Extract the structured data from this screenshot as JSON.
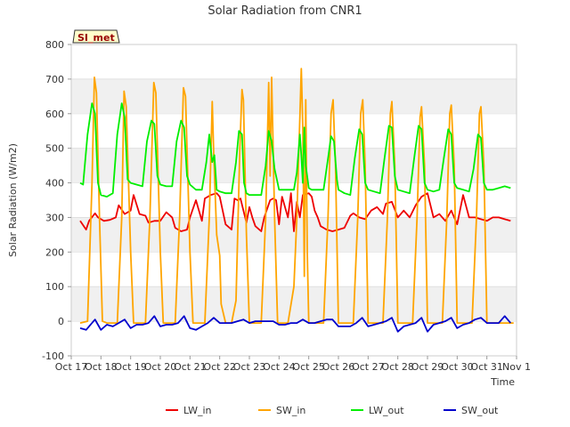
{
  "chart_data": {
    "type": "line",
    "title": "Solar Radiation from CNR1",
    "xlabel": "Time",
    "ylabel": "Solar Radiation (W/m2)",
    "site_label": "SI_met",
    "xlim": [
      0,
      15
    ],
    "ylim": [
      -100,
      800
    ],
    "y_ticks": [
      -100,
      0,
      100,
      200,
      300,
      400,
      500,
      600,
      700,
      800
    ],
    "x_ticks": [
      {
        "pos": 0,
        "label": "Oct 17"
      },
      {
        "pos": 1,
        "label": "Oct 18"
      },
      {
        "pos": 2,
        "label": "Oct 19"
      },
      {
        "pos": 3,
        "label": "Oct 20"
      },
      {
        "pos": 4,
        "label": "Oct 21"
      },
      {
        "pos": 5,
        "label": "Oct 22"
      },
      {
        "pos": 6,
        "label": "Oct 23"
      },
      {
        "pos": 7,
        "label": "Oct 24"
      },
      {
        "pos": 8,
        "label": "Oct 25"
      },
      {
        "pos": 9,
        "label": "Oct 26"
      },
      {
        "pos": 10,
        "label": "Oct 27"
      },
      {
        "pos": 11,
        "label": "Oct 28"
      },
      {
        "pos": 12,
        "label": "Oct 29"
      },
      {
        "pos": 13,
        "label": "Oct 30"
      },
      {
        "pos": 14,
        "label": "Oct 31"
      },
      {
        "pos": 15,
        "label": "Nov 1"
      }
    ],
    "grid": "horizontal bands",
    "legend_position": "bottom",
    "series": [
      {
        "name": "LW_in",
        "color": "#ee0000",
        "x": [
          0.3,
          0.5,
          0.6,
          0.8,
          0.9,
          1.1,
          1.3,
          1.5,
          1.6,
          1.8,
          2.0,
          2.1,
          2.3,
          2.5,
          2.6,
          2.8,
          3.0,
          3.2,
          3.4,
          3.5,
          3.7,
          3.9,
          4.0,
          4.2,
          4.4,
          4.5,
          4.7,
          4.9,
          5.0,
          5.2,
          5.4,
          5.5,
          5.6,
          5.7,
          5.9,
          6.0,
          6.1,
          6.2,
          6.4,
          6.5,
          6.7,
          6.8,
          6.9,
          7.0,
          7.1,
          7.3,
          7.4,
          7.5,
          7.6,
          7.7,
          7.8,
          8.0,
          8.1,
          8.2,
          8.3,
          8.4,
          8.6,
          8.8,
          9.0,
          9.2,
          9.4,
          9.5,
          9.7,
          9.9,
          10.1,
          10.3,
          10.5,
          10.6,
          10.8,
          11.0,
          11.2,
          11.4,
          11.6,
          11.8,
          12.0,
          12.2,
          12.4,
          12.6,
          12.8,
          13.0,
          13.2,
          13.4,
          13.6,
          13.8,
          14.0,
          14.2,
          14.4,
          14.6,
          14.8
        ],
        "y": [
          290,
          265,
          290,
          312,
          300,
          290,
          293,
          300,
          335,
          310,
          320,
          365,
          310,
          305,
          285,
          290,
          290,
          315,
          300,
          270,
          260,
          265,
          300,
          350,
          290,
          355,
          365,
          370,
          360,
          280,
          265,
          355,
          350,
          355,
          285,
          330,
          300,
          275,
          260,
          300,
          350,
          355,
          350,
          280,
          360,
          300,
          370,
          260,
          345,
          300,
          365,
          370,
          360,
          320,
          300,
          275,
          265,
          260,
          265,
          270,
          305,
          312,
          300,
          295,
          320,
          330,
          310,
          340,
          345,
          300,
          320,
          300,
          335,
          360,
          370,
          300,
          310,
          290,
          320,
          280,
          365,
          300,
          300,
          295,
          290,
          300,
          300,
          295,
          290
        ]
      },
      {
        "name": "SW_in",
        "color": "#ffa500",
        "x": [
          0.3,
          0.55,
          0.7,
          0.78,
          0.85,
          0.95,
          1.05,
          1.2,
          1.4,
          1.55,
          1.7,
          1.78,
          1.85,
          2.0,
          2.1,
          2.3,
          2.5,
          2.65,
          2.78,
          2.85,
          3.0,
          3.1,
          3.3,
          3.5,
          3.65,
          3.78,
          3.85,
          4.0,
          4.1,
          4.3,
          4.5,
          4.65,
          4.75,
          4.8,
          4.9,
          5.0,
          5.05,
          5.2,
          5.4,
          5.55,
          5.68,
          5.75,
          5.8,
          5.9,
          6.0,
          6.05,
          6.2,
          6.4,
          6.55,
          6.65,
          6.7,
          6.75,
          6.85,
          6.95,
          7.1,
          7.3,
          7.5,
          7.6,
          7.7,
          7.75,
          7.8,
          7.85,
          7.9,
          7.95,
          8.0,
          8.1,
          8.3,
          8.5,
          8.65,
          8.75,
          8.82,
          8.9,
          9.0,
          9.1,
          9.3,
          9.5,
          9.65,
          9.75,
          9.82,
          9.9,
          10.0,
          10.1,
          10.3,
          10.5,
          10.65,
          10.75,
          10.8,
          10.9,
          11.0,
          11.1,
          11.3,
          11.5,
          11.65,
          11.75,
          11.8,
          11.9,
          12.0,
          12.1,
          12.3,
          12.5,
          12.65,
          12.75,
          12.8,
          12.9,
          13.0,
          13.1,
          13.3,
          13.5,
          13.65,
          13.75,
          13.8,
          13.9,
          14.0,
          14.1,
          14.3,
          14.5,
          14.7,
          14.9
        ],
        "y": [
          -5,
          0,
          400,
          705,
          660,
          300,
          0,
          -5,
          -5,
          -5,
          300,
          665,
          620,
          200,
          -5,
          -5,
          -5,
          300,
          690,
          660,
          200,
          -5,
          -5,
          -5,
          300,
          675,
          650,
          200,
          -5,
          -5,
          -5,
          300,
          635,
          480,
          250,
          190,
          50,
          -5,
          -5,
          60,
          500,
          670,
          640,
          250,
          -5,
          -5,
          -5,
          -5,
          300,
          690,
          420,
          705,
          300,
          -5,
          -5,
          -5,
          100,
          300,
          590,
          730,
          560,
          130,
          640,
          200,
          -5,
          -5,
          -5,
          -5,
          300,
          600,
          640,
          450,
          -5,
          -5,
          -5,
          -5,
          300,
          600,
          640,
          450,
          -5,
          -5,
          -5,
          -5,
          300,
          600,
          635,
          450,
          -5,
          -5,
          -5,
          -5,
          300,
          590,
          620,
          450,
          -5,
          -5,
          -5,
          -5,
          300,
          600,
          625,
          450,
          -5,
          -5,
          -5,
          -5,
          300,
          600,
          620,
          450,
          -5,
          -5,
          -5,
          -5,
          -5,
          -5
        ]
      },
      {
        "name": "LW_out",
        "color": "#00ee00",
        "x": [
          0.3,
          0.4,
          0.55,
          0.7,
          0.8,
          0.9,
          1.0,
          1.2,
          1.4,
          1.55,
          1.7,
          1.8,
          1.9,
          2.0,
          2.2,
          2.4,
          2.55,
          2.7,
          2.8,
          2.9,
          3.0,
          3.2,
          3.4,
          3.55,
          3.7,
          3.8,
          3.9,
          4.0,
          4.2,
          4.4,
          4.55,
          4.65,
          4.75,
          4.82,
          4.9,
          5.0,
          5.2,
          5.4,
          5.55,
          5.65,
          5.75,
          5.82,
          5.9,
          6.0,
          6.2,
          6.4,
          6.55,
          6.65,
          6.75,
          6.85,
          6.95,
          7.0,
          7.1,
          7.3,
          7.5,
          7.6,
          7.7,
          7.75,
          7.8,
          7.85,
          7.9,
          8.0,
          8.1,
          8.3,
          8.5,
          8.65,
          8.75,
          8.85,
          8.95,
          9.0,
          9.2,
          9.4,
          9.55,
          9.7,
          9.8,
          9.9,
          10.0,
          10.2,
          10.4,
          10.55,
          10.7,
          10.8,
          10.9,
          11.0,
          11.2,
          11.4,
          11.55,
          11.7,
          11.8,
          11.9,
          12.0,
          12.2,
          12.4,
          12.55,
          12.7,
          12.8,
          12.9,
          13.0,
          13.2,
          13.4,
          13.55,
          13.7,
          13.8,
          13.9,
          14.0,
          14.2,
          14.4,
          14.6,
          14.8
        ],
        "y": [
          400,
          395,
          540,
          630,
          600,
          400,
          365,
          360,
          370,
          540,
          630,
          590,
          410,
          400,
          395,
          390,
          520,
          580,
          570,
          420,
          395,
          390,
          390,
          520,
          580,
          560,
          420,
          395,
          380,
          380,
          460,
          540,
          460,
          480,
          380,
          375,
          370,
          370,
          460,
          550,
          540,
          400,
          370,
          365,
          365,
          365,
          450,
          550,
          520,
          440,
          400,
          380,
          380,
          380,
          380,
          430,
          540,
          480,
          400,
          560,
          450,
          385,
          380,
          380,
          380,
          470,
          535,
          520,
          410,
          380,
          370,
          365,
          470,
          555,
          540,
          400,
          380,
          375,
          370,
          470,
          565,
          560,
          420,
          380,
          375,
          370,
          470,
          565,
          555,
          400,
          380,
          375,
          380,
          470,
          555,
          540,
          400,
          385,
          380,
          375,
          440,
          540,
          530,
          400,
          380,
          380,
          385,
          390,
          385
        ]
      },
      {
        "name": "SW_out",
        "color": "#0000cc",
        "x": [
          0.3,
          0.5,
          0.7,
          0.8,
          0.9,
          1.0,
          1.2,
          1.4,
          1.6,
          1.8,
          2.0,
          2.2,
          2.4,
          2.6,
          2.8,
          3.0,
          3.2,
          3.4,
          3.6,
          3.8,
          4.0,
          4.2,
          4.4,
          4.6,
          4.8,
          5.0,
          5.2,
          5.4,
          5.6,
          5.8,
          6.0,
          6.2,
          6.4,
          6.6,
          6.8,
          7.0,
          7.2,
          7.4,
          7.6,
          7.8,
          8.0,
          8.2,
          8.4,
          8.6,
          8.8,
          9.0,
          9.2,
          9.4,
          9.6,
          9.8,
          10.0,
          10.2,
          10.4,
          10.6,
          10.8,
          11.0,
          11.2,
          11.4,
          11.6,
          11.8,
          12.0,
          12.2,
          12.4,
          12.6,
          12.8,
          13.0,
          13.2,
          13.4,
          13.6,
          13.8,
          14.0,
          14.2,
          14.4,
          14.6,
          14.8
        ],
        "y": [
          -20,
          -25,
          -5,
          5,
          -10,
          -25,
          -10,
          -15,
          -5,
          5,
          -20,
          -10,
          -10,
          -5,
          15,
          -15,
          -10,
          -10,
          -5,
          15,
          -20,
          -25,
          -15,
          -5,
          10,
          -5,
          -5,
          -5,
          0,
          5,
          -5,
          0,
          0,
          0,
          0,
          -10,
          -10,
          -5,
          -5,
          5,
          -5,
          -5,
          0,
          5,
          5,
          -15,
          -15,
          -15,
          -5,
          10,
          -15,
          -10,
          -5,
          0,
          10,
          -30,
          -15,
          -10,
          -5,
          10,
          -30,
          -10,
          -5,
          0,
          10,
          -20,
          -10,
          -5,
          5,
          10,
          -5,
          -5,
          -5,
          15,
          -5
        ]
      }
    ]
  }
}
